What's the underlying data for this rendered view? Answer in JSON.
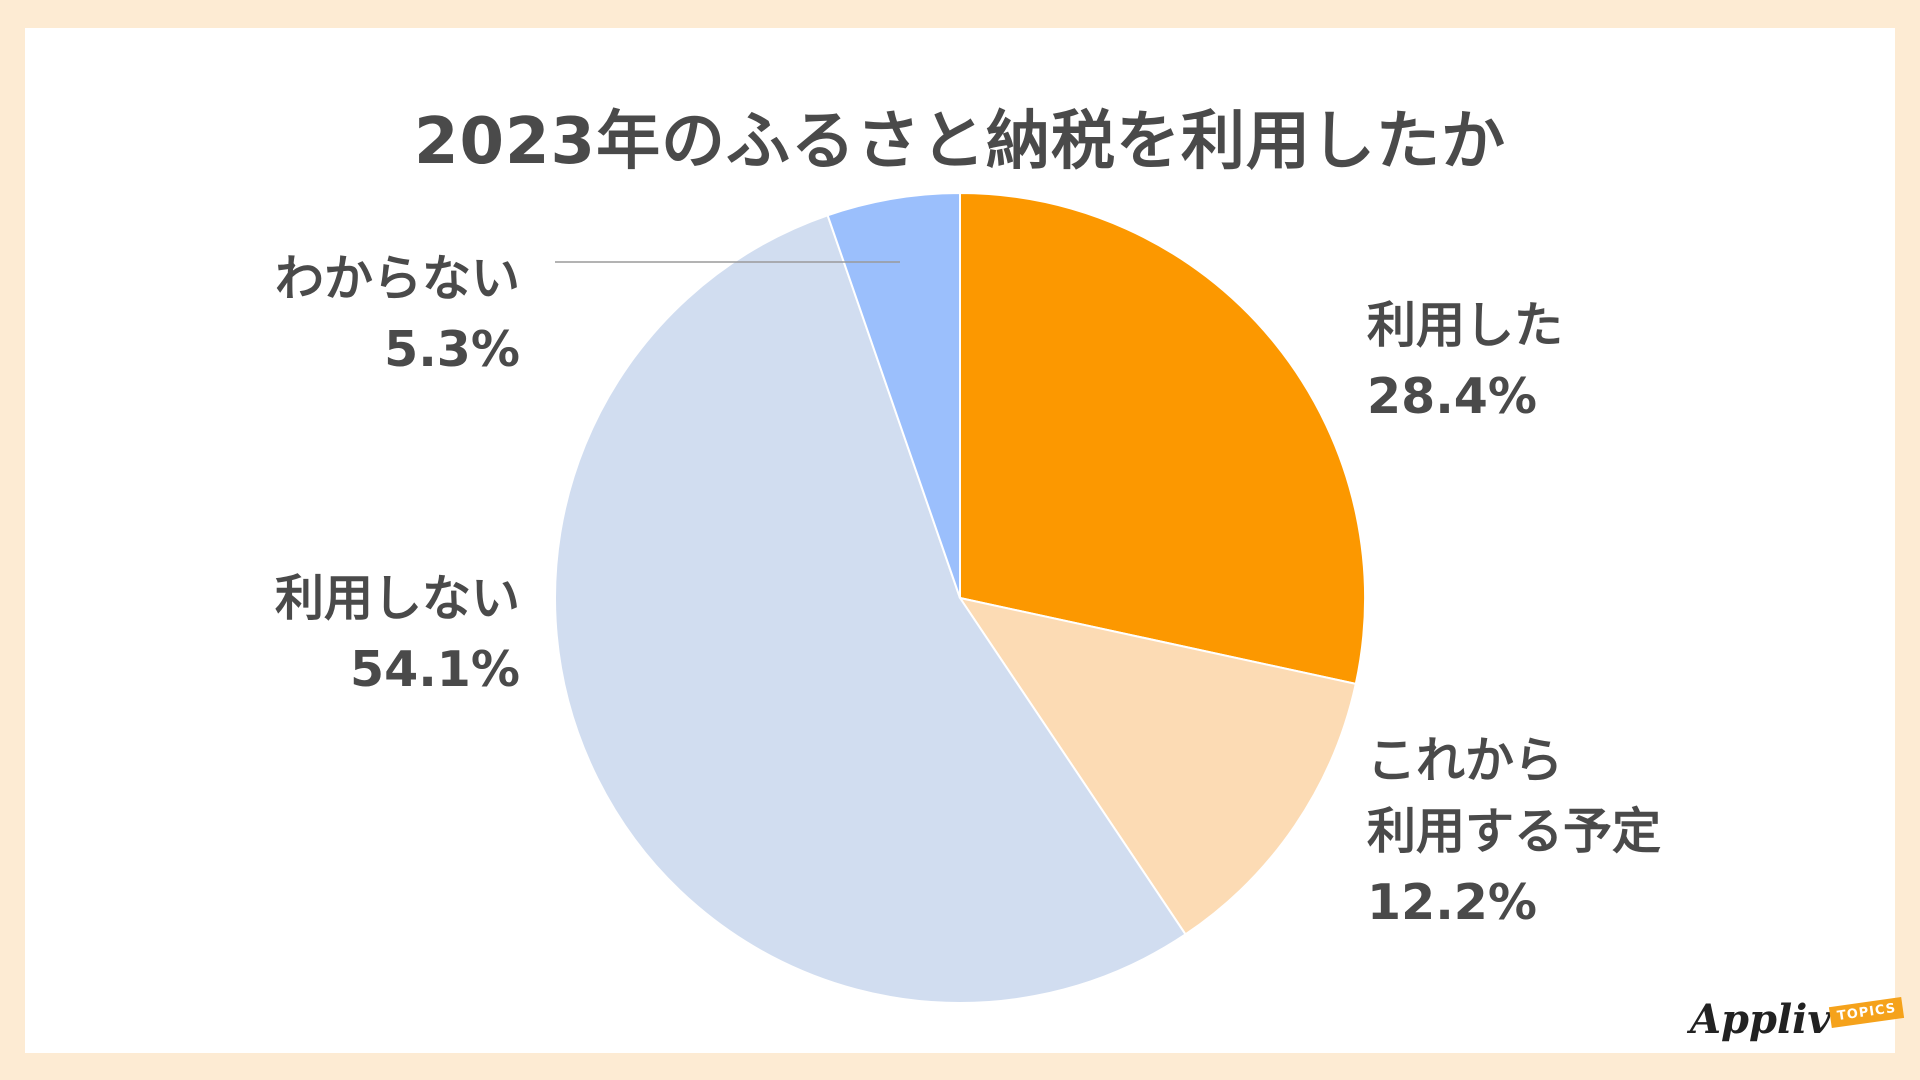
{
  "chart_data": {
    "type": "pie",
    "title": "2023年のふるさと納税を利用したか",
    "slices": [
      {
        "label_lines": [
          "利用した"
        ],
        "value": 28.4,
        "value_text": "28.4%",
        "color": "#fc9800"
      },
      {
        "label_lines": [
          "これから",
          "利用する予定"
        ],
        "value": 12.2,
        "value_text": "12.2%",
        "color": "#fcdbb4"
      },
      {
        "label_lines": [
          "利用しない"
        ],
        "value": 54.1,
        "value_text": "54.1%",
        "color": "#d1ddf0"
      },
      {
        "label_lines": [
          "わからない"
        ],
        "value": 5.3,
        "value_text": "5.3%",
        "color": "#9bbffc"
      }
    ],
    "start_angle": "12 o'clock",
    "direction": "clockwise",
    "legend": "none"
  },
  "logo": {
    "text": "Appliv",
    "badge": "TOPICS",
    "badge_color": "#f5a21b"
  }
}
